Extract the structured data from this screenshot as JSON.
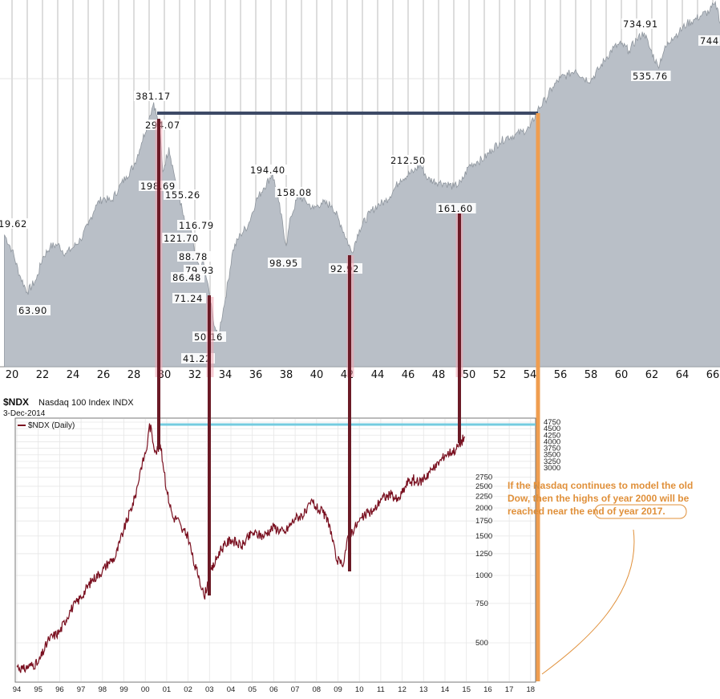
{
  "chart_data": [
    {
      "type": "area",
      "name": "old-dow",
      "x_ticks": [
        "20",
        "22",
        "24",
        "26",
        "28",
        "30",
        "32",
        "34",
        "36",
        "38",
        "40",
        "42",
        "44",
        "46",
        "48",
        "50",
        "52",
        "54",
        "56",
        "58",
        "60",
        "62",
        "64",
        "66"
      ],
      "series": [
        {
          "x": [
            1919.5,
            1920.0,
            1920.5,
            1921.0,
            1921.6,
            1922.0,
            1922.5,
            1923.0,
            1923.5,
            1924.0,
            1924.5,
            1925.0,
            1925.5,
            1926.0,
            1926.5,
            1927.0,
            1927.5,
            1928.0,
            1928.5,
            1929.0,
            1929.3,
            1929.7,
            1929.9,
            1930.3,
            1930.6,
            1931.0,
            1931.4,
            1931.7,
            1932.0,
            1932.3,
            1932.5,
            1932.8,
            1933.2,
            1933.5,
            1934.0,
            1934.5,
            1935.0,
            1935.5,
            1936.0,
            1936.5,
            1937.1,
            1937.5,
            1938.0,
            1938.3,
            1938.8,
            1939.3,
            1939.8,
            1940.3,
            1941.0,
            1941.6,
            1942.3,
            1942.8,
            1943.5,
            1944.0,
            1944.5,
            1945.0,
            1945.5,
            1946.4,
            1946.8,
            1947.3,
            1948.0,
            1948.5,
            1949.0,
            1949.5,
            1950.0,
            1950.5,
            1951.0,
            1951.5,
            1952.0,
            1952.5,
            1953.0,
            1953.5,
            1954.0,
            1954.5,
            1955.0,
            1955.5,
            1956.0,
            1956.5,
            1957.0,
            1957.5,
            1958.0,
            1958.5,
            1959.0,
            1959.5,
            1960.0,
            1960.5,
            1961.0,
            1961.5,
            1961.8,
            1962.4,
            1962.8,
            1963.3,
            1963.8,
            1964.3,
            1964.8,
            1965.3,
            1965.8,
            1966.1,
            1966.3,
            1966.6
          ],
          "values": [
            109.6,
            95,
            75,
            63.9,
            72,
            88,
            98,
            100,
            92,
            97,
            105,
            120,
            145,
            155,
            150,
            170,
            190,
            210,
            260,
            330,
            381.17,
            294.07,
            198.69,
            250,
            200,
            155.26,
            116.79,
            121.7,
            88.78,
            79.93,
            86.48,
            71.24,
            50.16,
            41.22,
            60,
            95,
            110,
            120,
            150,
            170,
            194.4,
            150,
            98.95,
            130,
            158.08,
            150,
            140,
            148,
            145,
            120,
            92.92,
            115,
            135,
            145,
            150,
            165,
            185,
            200,
            212.5,
            185,
            180,
            178,
            172,
            180,
            210,
            218,
            225,
            245,
            262,
            275,
            280,
            290,
            300,
            355,
            390,
            440,
            480,
            495,
            520,
            480,
            470,
            520,
            580,
            640,
            660,
            620,
            690,
            734.91,
            650,
            535.76,
            620,
            700,
            740,
            800,
            830,
            870,
            900,
            960,
            930,
            744
          ]
        }
      ],
      "annotations": [
        "381.17",
        "294.07",
        "198.69",
        "155.26",
        "116.79",
        "121.70",
        "88.78",
        "79.93",
        "86.48",
        "71.24",
        "50.16",
        "41.22",
        "194.40",
        "158.08",
        "98.95",
        "92.92",
        "212.50",
        "161.60",
        "734.91",
        "535.76",
        "744",
        "19.62",
        "63.90"
      ]
    },
    {
      "type": "line",
      "name": "nasdaq-100",
      "title": "$NDX",
      "subtitle": "Nasdaq 100 Index INDX",
      "date": "3-Dec-2014",
      "legend": "$NDX (Daily)",
      "x_ticks": [
        "94",
        "95",
        "96",
        "97",
        "98",
        "99",
        "00",
        "01",
        "02",
        "03",
        "04",
        "05",
        "06",
        "07",
        "08",
        "09",
        "10",
        "11",
        "12",
        "13",
        "14",
        "15",
        "16",
        "17",
        "18"
      ],
      "y_ticks": [
        "4750",
        "4500",
        "4250",
        "4000",
        "3750",
        "3500",
        "3250",
        "3000",
        "2750",
        "2500",
        "2250",
        "2000",
        "1750",
        "1500",
        "1250",
        "1000",
        "750",
        "500"
      ],
      "series": [
        {
          "x": [
            1994.0,
            1994.3,
            1994.6,
            1995.0,
            1995.5,
            1996.0,
            1996.5,
            1997.0,
            1997.5,
            1998.0,
            1998.3,
            1998.6,
            1998.8,
            1999.0,
            1999.5,
            1999.8,
            2000.1,
            2000.2,
            2000.5,
            2000.7,
            2001.0,
            2001.3,
            2001.5,
            2001.7,
            2002.0,
            2002.3,
            2002.5,
            2002.75,
            2003.0,
            2003.5,
            2004.0,
            2004.5,
            2005.0,
            2005.5,
            2006.0,
            2006.5,
            2007.0,
            2007.5,
            2007.8,
            2008.0,
            2008.3,
            2008.6,
            2008.9,
            2009.2,
            2009.5,
            2010.0,
            2010.4,
            2010.7,
            2011.0,
            2011.5,
            2011.8,
            2012.3,
            2012.8,
            2013.0,
            2013.5,
            2014.0,
            2014.5,
            2014.92
          ],
          "values": [
            395,
            380,
            395,
            405,
            520,
            560,
            700,
            800,
            950,
            1050,
            1150,
            1200,
            1400,
            1600,
            2200,
            3000,
            3900,
            4700,
            3600,
            3900,
            2400,
            1800,
            1800,
            1600,
            1500,
            1100,
            1000,
            800,
            1000,
            1300,
            1450,
            1350,
            1550,
            1500,
            1650,
            1550,
            1800,
            1900,
            2150,
            2000,
            1900,
            1700,
            1200,
            1100,
            1500,
            1750,
            1900,
            1950,
            2200,
            2300,
            2150,
            2650,
            2600,
            2700,
            3000,
            3500,
            3700,
            4200
          ]
        }
      ],
      "annotation": "If the Nasdaq continues to model the old Dow, then the highs of year 2000 will be reached near the end of year 2017."
    }
  ],
  "colors": {
    "area_fill": "#b9bfc7",
    "area_stroke": "#8f969e",
    "grid_vertical": "#aaaaaa",
    "navy_line": "#3d4a66",
    "cyan_line": "#74cce0",
    "orange_line": "#ef9d4f",
    "maroon_line": "#6b1a26",
    "pink_highlight": "#f2a6b2",
    "ndx_line": "#7a1020",
    "annotation_text": "#e0903a"
  }
}
